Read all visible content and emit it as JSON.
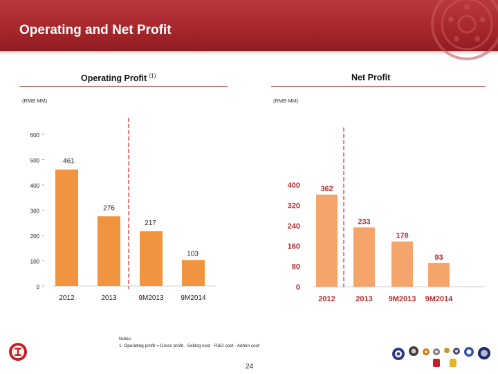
{
  "slide": {
    "title": "Operating and Net Profit",
    "page_number": "24",
    "notes_heading": "Notes:",
    "notes": [
      "1.   Operating profit = Gross profit - Selling cost - R&D cost - Admin cost"
    ]
  },
  "colors": {
    "header": "#a5262b",
    "bar_left": "#f0943f",
    "bar_right": "#f3a56b",
    "divider": "#e0262e"
  },
  "icons": [
    "logo-icon",
    "product-wheels-icon",
    "wheel-watermark-icon"
  ],
  "chart_data": [
    {
      "type": "bar",
      "title": "Operating Profit",
      "title_note": "(1)",
      "unit_label": "(RMB MM)",
      "categories": [
        "2012",
        "2013",
        "9M2013",
        "9M2014"
      ],
      "values": [
        461,
        276,
        217,
        103
      ],
      "value_labels": [
        "461",
        "276",
        "217",
        "103"
      ],
      "ylim": [
        0,
        600
      ],
      "yticks": [
        0,
        100,
        200,
        300,
        400,
        500,
        600
      ],
      "ytick_labels": [
        "0",
        "100",
        "200",
        "300",
        "400",
        "500",
        "600"
      ],
      "legend": "none",
      "grid": false
    },
    {
      "type": "bar",
      "title": "Net Profit",
      "unit_label": "(RMB MM)",
      "categories": [
        "2012",
        "2013",
        "9M2013",
        "9M2014"
      ],
      "values": [
        362,
        233,
        178,
        93
      ],
      "value_labels": [
        "362",
        "233",
        "178",
        "93"
      ],
      "ylim": [
        0,
        400
      ],
      "yticks": [
        0,
        80,
        160,
        240,
        320,
        400
      ],
      "ytick_labels": [
        "0",
        "80",
        "160",
        "240",
        "320",
        "400"
      ],
      "legend": "none",
      "grid": false
    }
  ]
}
